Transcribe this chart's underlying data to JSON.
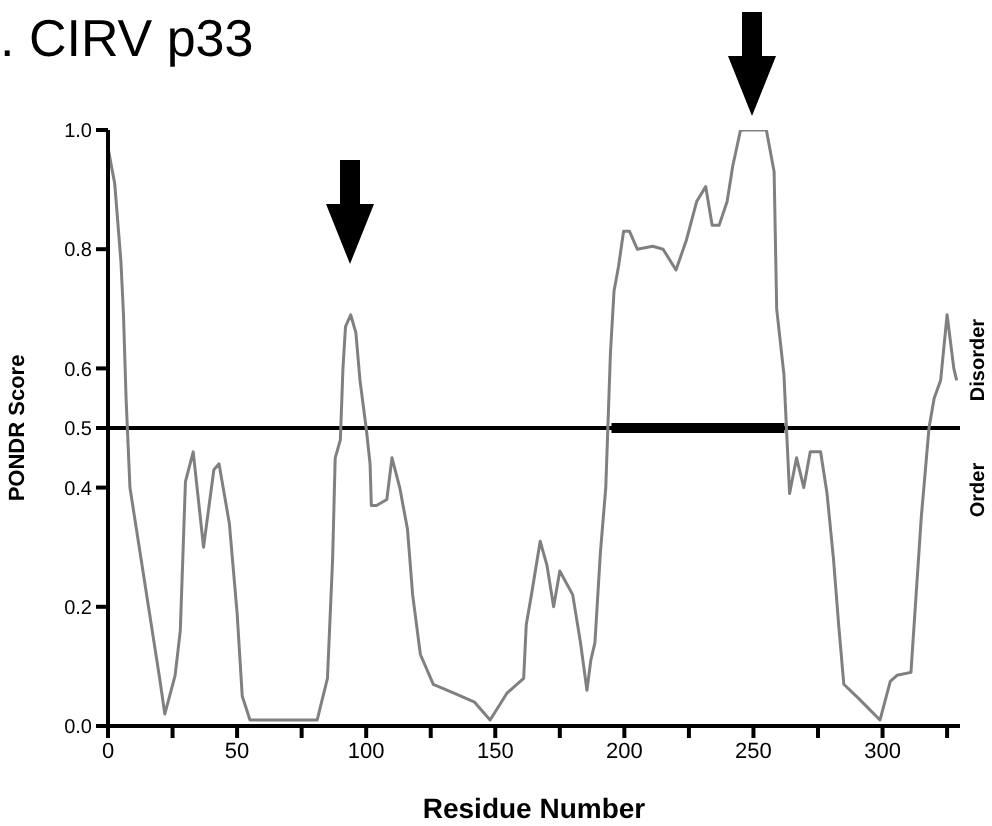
{
  "chart_data": {
    "type": "line",
    "title": ". CIRV p33",
    "xlabel": "Residue Number",
    "ylabel": "PONDR Score",
    "annotations": [
      "Disorder",
      "Order"
    ],
    "xlim": [
      0,
      330
    ],
    "xticks": [
      0,
      {
        "value": 25,
        "label": null
      },
      50,
      {
        "value": 75,
        "label": null
      },
      100,
      {
        "value": 125,
        "label": null
      },
      150,
      {
        "value": 175,
        "label": null
      },
      200,
      {
        "value": 225,
        "label": null
      },
      250,
      {
        "value": 275,
        "label": null
      },
      300,
      {
        "value": 325,
        "label": null
      }
    ],
    "ylim": [
      0,
      1
    ],
    "yticks": [
      {
        "value": 0,
        "label": "0.0"
      },
      {
        "value": 0.2,
        "label": "0.2"
      },
      {
        "value": 0.4,
        "label": "0.4"
      },
      {
        "value": 0.5,
        "label": "0.5"
      },
      {
        "value": 0.6,
        "label": "0.6"
      },
      {
        "value": 0.8,
        "label": "0.8"
      },
      {
        "value": 1,
        "label": "1.0"
      }
    ],
    "grid": false,
    "marker": "none",
    "ref_lines": [
      {
        "axis": "y",
        "value": 0.5,
        "color": "#000000"
      }
    ],
    "series": [
      {
        "color": "#808080",
        "x": [
          0,
          2.6,
          5,
          6,
          7,
          8.5,
          20,
          22,
          26,
          28,
          30,
          33,
          37,
          41,
          43,
          47,
          50,
          52,
          55,
          81,
          85,
          87,
          88,
          90,
          91,
          92,
          94,
          96,
          97.6,
          100,
          101.5,
          102,
          104,
          108,
          110,
          113,
          116,
          118,
          121,
          126,
          134,
          142,
          148,
          154.5,
          161,
          162,
          164,
          167.4,
          170,
          172.6,
          175,
          180,
          183,
          185.5,
          187,
          188.6,
          190.7,
          192.8,
          194.6,
          196,
          197.7,
          199.7,
          202,
          205,
          211,
          215,
          220,
          224,
          228,
          231.5,
          234,
          236.7,
          239.8,
          242,
          245,
          255,
          258,
          259,
          261.8,
          263,
          264,
          266.7,
          269.5,
          272,
          276,
          278.5,
          281,
          283,
          285,
          291,
          299,
          303,
          305.6,
          311,
          313,
          315,
          317,
          318,
          320,
          322.5,
          325,
          327.6,
          328.7
        ],
        "values": [
          0.97,
          0.91,
          0.78,
          0.69,
          0.55,
          0.4,
          0.08,
          0.02,
          0.085,
          0.16,
          0.41,
          0.46,
          0.3,
          0.43,
          0.44,
          0.34,
          0.19,
          0.05,
          0.01,
          0.01,
          0.08,
          0.28,
          0.45,
          0.48,
          0.6,
          0.67,
          0.69,
          0.66,
          0.58,
          0.5,
          0.44,
          0.37,
          0.37,
          0.38,
          0.45,
          0.4,
          0.33,
          0.22,
          0.12,
          0.07,
          0.055,
          0.04,
          0.01,
          0.055,
          0.08,
          0.17,
          0.22,
          0.31,
          0.27,
          0.2,
          0.26,
          0.22,
          0.14,
          0.06,
          0.11,
          0.14,
          0.29,
          0.4,
          0.625,
          0.73,
          0.77,
          0.83,
          0.83,
          0.8,
          0.805,
          0.8,
          0.765,
          0.815,
          0.88,
          0.905,
          0.84,
          0.84,
          0.88,
          0.94,
          1,
          1,
          0.93,
          0.7,
          0.59,
          0.48,
          0.39,
          0.45,
          0.4,
          0.46,
          0.46,
          0.39,
          0.28,
          0.17,
          0.07,
          0.045,
          0.01,
          0.075,
          0.085,
          0.09,
          0.22,
          0.35,
          0.45,
          0.5,
          0.55,
          0.58,
          0.69,
          0.6,
          0.58
        ]
      },
      {
        "color": "#000000",
        "x": [
          195,
          262
        ],
        "values": [
          0.5,
          0.5
        ]
      }
    ]
  }
}
